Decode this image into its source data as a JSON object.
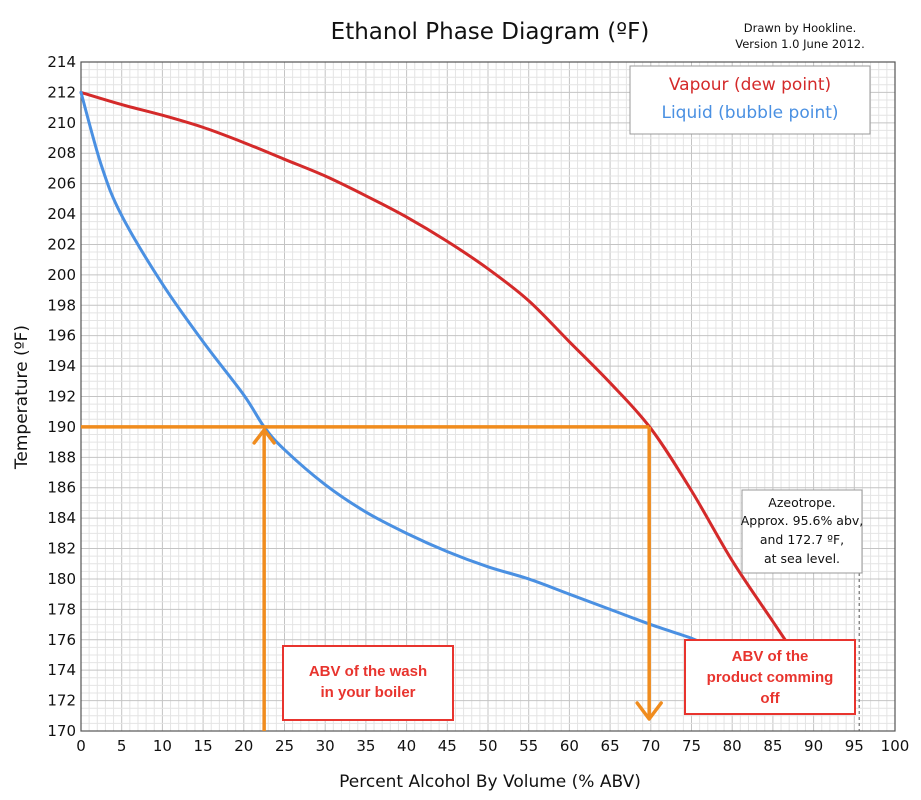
{
  "chart_data": {
    "type": "line",
    "title": "Ethanol Phase Diagram (ºF)",
    "credit": [
      "Drawn by Hookline.",
      "Version 1.0 June 2012."
    ],
    "xlabel": "Percent Alcohol By Volume (% ABV)",
    "ylabel": "Temperature (ºF)",
    "xlim": [
      0,
      100
    ],
    "ylim": [
      170,
      214
    ],
    "x_ticks": [
      0,
      5,
      10,
      15,
      20,
      25,
      30,
      35,
      40,
      45,
      50,
      55,
      60,
      65,
      70,
      75,
      80,
      85,
      90,
      95,
      100
    ],
    "y_ticks": [
      170,
      172,
      174,
      176,
      178,
      180,
      182,
      184,
      186,
      188,
      190,
      192,
      194,
      196,
      198,
      200,
      202,
      204,
      206,
      208,
      210,
      212,
      214
    ],
    "grid": true,
    "legend_position": "top-right",
    "series": [
      {
        "name": "Vapour (dew point)",
        "color": "#d42a2a",
        "x": [
          0,
          5,
          10,
          15,
          20,
          25,
          30,
          35,
          40,
          45,
          50,
          55,
          60,
          65,
          70,
          75,
          80,
          85,
          87
        ],
        "y": [
          212,
          211.2,
          210.5,
          209.7,
          208.7,
          207.6,
          206.5,
          205.2,
          203.8,
          202.2,
          200.4,
          198.3,
          195.6,
          192.9,
          189.9,
          185.8,
          181.2,
          177.2,
          175.6
        ]
      },
      {
        "name": "Liquid (bubble point)",
        "color": "#4a90e2",
        "x": [
          0,
          2.5,
          5,
          10,
          15,
          20,
          22.5,
          25,
          30,
          35,
          40,
          45,
          50,
          55,
          60,
          65,
          70,
          75,
          77
        ],
        "y": [
          212,
          207.2,
          203.9,
          199.4,
          195.6,
          192.1,
          190,
          188.5,
          186.2,
          184.4,
          183.0,
          181.8,
          180.8,
          180.0,
          179.0,
          178.0,
          177.0,
          176.1,
          175.6
        ]
      }
    ],
    "annotations": {
      "guide_color": "#f08c1e",
      "temperature_line": 190,
      "wash_abv": 22.5,
      "product_abv": 69.8,
      "azeotrope_abv": 95.6,
      "azeotrope_note": [
        "Azeotrope.",
        "Approx. 95.6% abv,",
        "and 172.7 ºF,",
        "at sea level."
      ],
      "wash_label": [
        "ABV of the wash",
        "in your boiler"
      ],
      "product_label": [
        "ABV of the",
        "product comming",
        "off"
      ]
    }
  }
}
